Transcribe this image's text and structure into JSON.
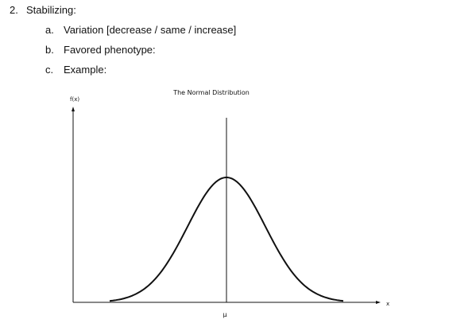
{
  "list": {
    "number": "2.",
    "label": "Stabilizing:",
    "items": [
      {
        "marker": "a.",
        "text": "Variation [decrease / same / increase]"
      },
      {
        "marker": "b.",
        "text": "Favored phenotype:"
      },
      {
        "marker": "c.",
        "text": "Example:"
      }
    ]
  },
  "figure": {
    "title": "The Normal Distribution",
    "y_label": "f(x)",
    "x_label": "x",
    "mean_label": "μ"
  }
}
